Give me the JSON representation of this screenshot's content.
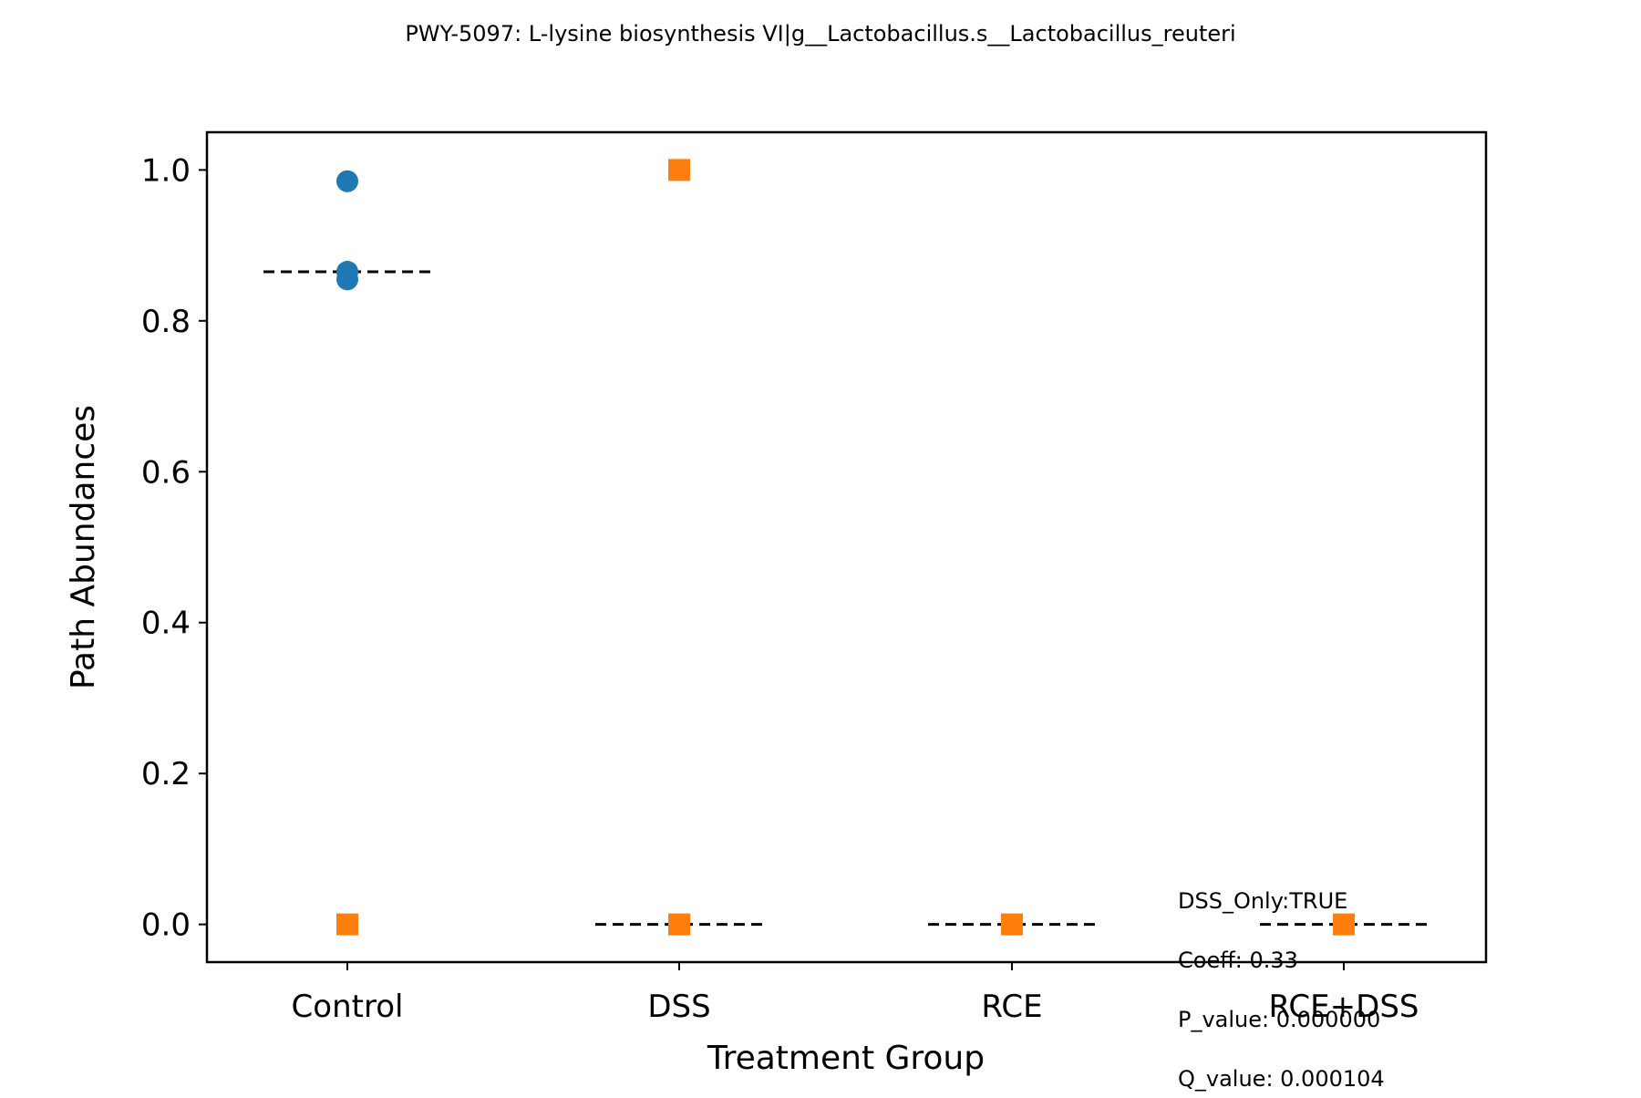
{
  "chart_data": {
    "type": "scatter",
    "title": "PWY-5097: L-lysine biosynthesis VI|g__Lactobacillus.s__Lactobacillus_reuteri",
    "xlabel": "Treatment Group",
    "ylabel": "Path Abundances",
    "categories": [
      "Control",
      "DSS",
      "RCE",
      "RCE+DSS"
    ],
    "ylim": [
      -0.05,
      1.05
    ],
    "yticks": [
      0.0,
      0.2,
      0.4,
      0.6,
      0.8,
      1.0
    ],
    "ytick_labels": [
      "0.0",
      "0.2",
      "0.4",
      "0.6",
      "0.8",
      "1.0"
    ],
    "grid": false,
    "series": [
      {
        "marker": "circle",
        "color": "#1f77b4",
        "points": [
          {
            "category": "Control",
            "y": 0.985
          },
          {
            "category": "Control",
            "y": 0.865
          },
          {
            "category": "Control",
            "y": 0.855
          }
        ]
      },
      {
        "marker": "square",
        "color": "#ff7f0e",
        "points": [
          {
            "category": "Control",
            "y": 0.0
          },
          {
            "category": "DSS",
            "y": 1.0
          },
          {
            "category": "DSS",
            "y": 0.0
          },
          {
            "category": "RCE",
            "y": 0.0
          },
          {
            "category": "RCE+DSS",
            "y": 0.0
          }
        ]
      }
    ],
    "medians": [
      {
        "category": "Control",
        "y": 0.865
      },
      {
        "category": "DSS",
        "y": 0.0
      },
      {
        "category": "RCE",
        "y": 0.0
      },
      {
        "category": "RCE+DSS",
        "y": 0.0
      }
    ],
    "annotations": [
      "DSS_Only:TRUE",
      "Coeff:  0.33",
      "P_value: 0.000000",
      "Q_value: 0.000104"
    ]
  }
}
